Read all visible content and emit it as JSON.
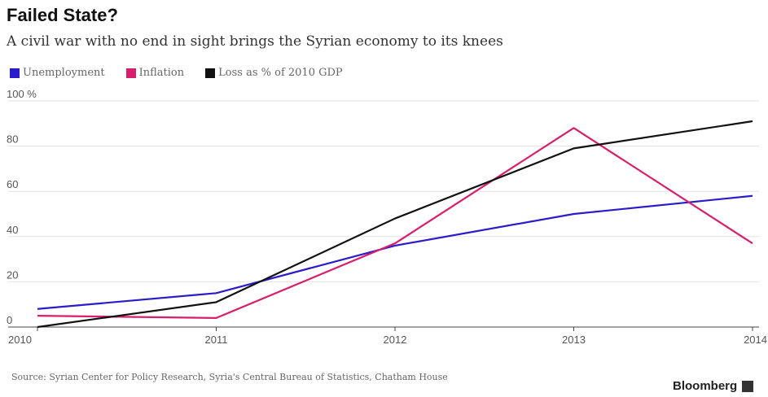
{
  "header": {
    "title": "Failed State?",
    "subtitle": "A civil war with no end in sight brings the Syrian economy to its knees"
  },
  "legend": [
    {
      "label": "Unemployment",
      "color": "#2a1ccb"
    },
    {
      "label": "Inflation",
      "color": "#d81e6b"
    },
    {
      "label": "Loss as % of 2010 GDP",
      "color": "#111111"
    }
  ],
  "footer": {
    "source": "Source: Syrian Center for Policy Research, Syria's Central Bureau of Statistics, Chatham House",
    "brand": "Bloomberg"
  },
  "chart_data": {
    "type": "line",
    "title": "Failed State?",
    "subtitle": "A civil war with no end in sight brings the Syrian economy to its knees",
    "xlabel": "",
    "ylabel": "",
    "x": [
      "2010",
      "2011",
      "2012",
      "2013",
      "2014"
    ],
    "ylim": [
      0,
      100
    ],
    "y_ticks": [
      "100 %",
      "80",
      "60",
      "40",
      "20",
      "0"
    ],
    "y_tick_values": [
      100,
      80,
      60,
      40,
      20,
      0
    ],
    "grid": true,
    "legend_position": "top-left",
    "series": [
      {
        "name": "Unemployment",
        "color": "#2a1ccb",
        "values": [
          8,
          15,
          36,
          50,
          58
        ]
      },
      {
        "name": "Inflation",
        "color": "#d81e6b",
        "values": [
          5,
          4,
          37,
          88,
          37
        ]
      },
      {
        "name": "Loss as % of 2010 GDP",
        "color": "#111111",
        "values": [
          0,
          11,
          48,
          79,
          91
        ]
      }
    ]
  }
}
